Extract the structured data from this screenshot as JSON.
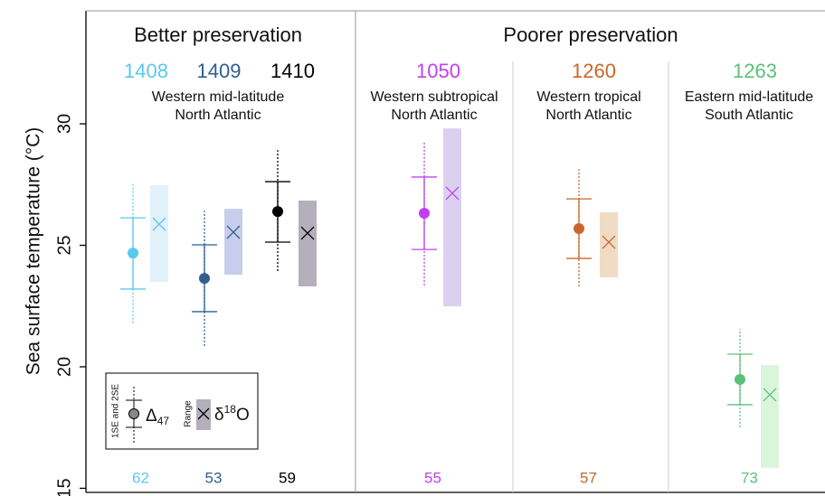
{
  "chart_data": {
    "type": "dot-range",
    "y_label": "Sea surface temperature (°C)",
    "ylim": [
      14.85,
      34.65
    ],
    "yticks": [
      15,
      20,
      25,
      30
    ],
    "groups": [
      "Better preservation",
      "Poorer preservation"
    ],
    "regions": [
      {
        "lines": [
          "Western mid-latitude",
          "North Atlantic"
        ]
      },
      {
        "lines": [
          "Western subtropical",
          "North Atlantic"
        ]
      },
      {
        "lines": [
          "Western tropical",
          "North Atlantic"
        ]
      },
      {
        "lines": [
          "Eastern mid-latitude",
          "South Atlantic"
        ]
      }
    ],
    "series": [
      {
        "name": "1408",
        "color": "#5bc8f0",
        "range_color": "#e0f1f9",
        "n": 62,
        "clumped": {
          "mean": 24.68,
          "se1": [
            23.2,
            26.13
          ],
          "se2": [
            21.8,
            27.6
          ]
        },
        "d18o": {
          "mean": 25.87,
          "range": [
            23.5,
            27.47
          ]
        }
      },
      {
        "name": "1409",
        "color": "#2f5f8f",
        "range_color": "#c7cdea",
        "n": 53,
        "clumped": {
          "mean": 23.64,
          "se1": [
            22.27,
            25.02
          ],
          "se2": [
            20.86,
            26.43
          ]
        },
        "d18o": {
          "mean": 25.54,
          "range": [
            23.79,
            26.5
          ]
        }
      },
      {
        "name": "1410",
        "color": "#000000",
        "range_color": "#b3b0bc",
        "n": 59,
        "clumped": {
          "mean": 26.39,
          "se1": [
            25.13,
            27.62
          ],
          "se2": [
            23.94,
            28.92
          ]
        },
        "d18o": {
          "mean": 25.5,
          "range": [
            23.31,
            26.84
          ]
        }
      },
      {
        "name": "1050",
        "color": "#c040f0",
        "range_color": "#dcd0f0",
        "n": 55,
        "clumped": {
          "mean": 26.32,
          "se1": [
            24.83,
            27.81
          ],
          "se2": [
            23.35,
            29.3
          ]
        },
        "d18o": {
          "mean": 27.14,
          "range": [
            22.49,
            29.81
          ]
        }
      },
      {
        "name": "1260",
        "color": "#c8662a",
        "range_color": "#f0dcc4",
        "n": 57,
        "clumped": {
          "mean": 25.69,
          "se1": [
            24.46,
            26.91
          ],
          "se2": [
            23.31,
            28.14
          ]
        },
        "d18o": {
          "mean": 25.13,
          "range": [
            23.68,
            26.36
          ]
        }
      },
      {
        "name": "1263",
        "color": "#5cc07a",
        "range_color": "#dbf5dc",
        "n": 73,
        "clumped": {
          "mean": 19.48,
          "se1": [
            18.44,
            20.52
          ],
          "se2": [
            17.51,
            21.56
          ]
        },
        "d18o": {
          "mean": 18.85,
          "range": [
            15.84,
            20.07
          ]
        }
      }
    ],
    "legend": {
      "error_label": "1SE and 2SE",
      "range_label": "Range",
      "clumped_symbol": "Δ",
      "clumped_sub": "47",
      "d18o_symbol": "δ",
      "d18o_sup": "18",
      "d18o_tail": "O"
    }
  }
}
